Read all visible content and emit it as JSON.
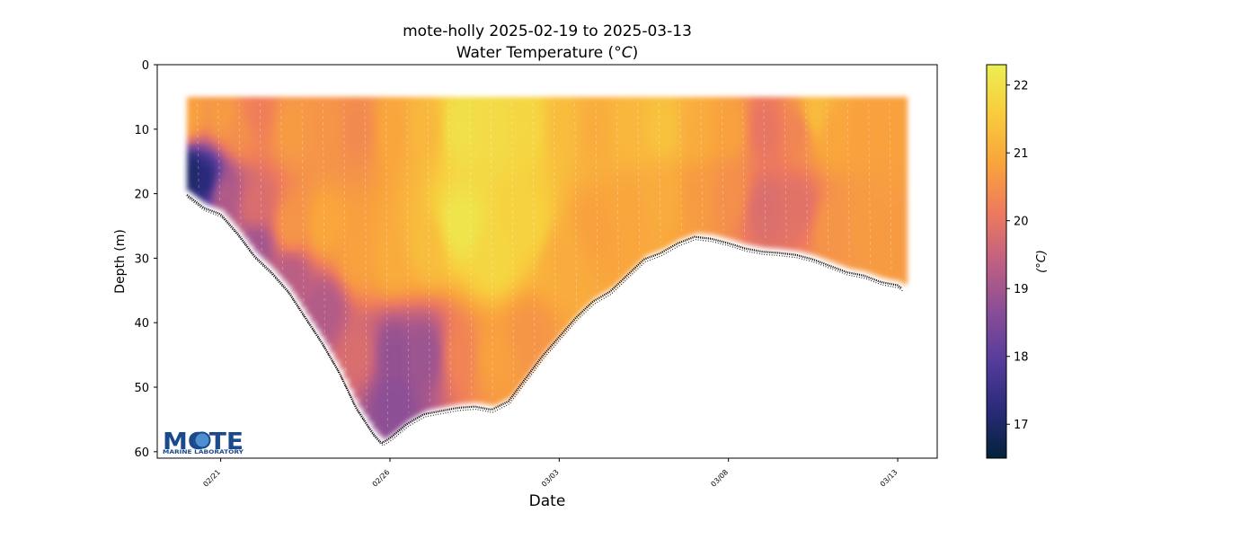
{
  "title": {
    "line1": "mote-holly 2025-02-19 to 2025-03-13",
    "line2_prefix": "Water Temperature (",
    "line2_unit": "°C",
    "line2_suffix": ")"
  },
  "logo": {
    "text": "MOTE",
    "subtext": "MARINE LABORATORY",
    "color": "#1a4a8c"
  },
  "chart_data": {
    "type": "scatter",
    "subtype": "depth-time section colored by temperature",
    "xlabel": "Date",
    "ylabel": "Depth (m)",
    "colorbar_label": "(°C)",
    "xticks": [
      {
        "label": "02/21",
        "date": "2025-02-21"
      },
      {
        "label": "02/26",
        "date": "2025-02-26"
      },
      {
        "label": "03/03",
        "date": "2025-03-03"
      },
      {
        "label": "03/08",
        "date": "2025-03-08"
      },
      {
        "label": "03/13",
        "date": "2025-03-13"
      }
    ],
    "xlim": [
      "2025-02-19T03:00",
      "2025-03-14T04:00"
    ],
    "yticks": [
      0,
      10,
      20,
      30,
      40,
      50,
      60
    ],
    "ylim": [
      61,
      0
    ],
    "y_inverted": true,
    "colorbar": {
      "range": [
        16.5,
        22.3
      ],
      "ticks": [
        17,
        18,
        19,
        20,
        21,
        22
      ],
      "colormap": "thermal",
      "stops": [
        "#04223a",
        "#2a2b7a",
        "#573c9c",
        "#8a4e96",
        "#c06082",
        "#ee7a5d",
        "#f9a43c",
        "#f8cc3c",
        "#ecee52"
      ]
    },
    "profile_top_depth_m": 5,
    "series": [
      {
        "name": "seafloor",
        "values_kind": "bottom depth (m) vs date",
        "points": [
          [
            "2025-02-20T00:00",
            19.5
          ],
          [
            "2025-02-20T06:00",
            20.5
          ],
          [
            "2025-02-20T12:00",
            21.5
          ],
          [
            "2025-02-21T00:00",
            22.5
          ],
          [
            "2025-02-21T12:00",
            25.5
          ],
          [
            "2025-02-22T00:00",
            29.0
          ],
          [
            "2025-02-22T12:00",
            31.5
          ],
          [
            "2025-02-23T00:00",
            34.5
          ],
          [
            "2025-02-23T12:00",
            38.5
          ],
          [
            "2025-02-24T00:00",
            42.5
          ],
          [
            "2025-02-24T12:00",
            47.0
          ],
          [
            "2025-02-25T00:00",
            52.5
          ],
          [
            "2025-02-25T12:00",
            56.5
          ],
          [
            "2025-02-25T18:00",
            58.0
          ],
          [
            "2025-02-26T00:00",
            57.2
          ],
          [
            "2025-02-26T12:00",
            55.0
          ],
          [
            "2025-02-27T00:00",
            53.5
          ],
          [
            "2025-02-27T12:00",
            53.0
          ],
          [
            "2025-02-28T00:00",
            52.5
          ],
          [
            "2025-02-28T12:00",
            52.3
          ],
          [
            "2025-03-01T00:00",
            52.8
          ],
          [
            "2025-03-01T12:00",
            51.5
          ],
          [
            "2025-03-02T00:00",
            48.0
          ],
          [
            "2025-03-02T12:00",
            44.5
          ],
          [
            "2025-03-03T00:00",
            41.5
          ],
          [
            "2025-03-03T12:00",
            38.5
          ],
          [
            "2025-03-04T00:00",
            36.0
          ],
          [
            "2025-03-04T12:00",
            34.5
          ],
          [
            "2025-03-05T00:00",
            32.0
          ],
          [
            "2025-03-05T12:00",
            29.5
          ],
          [
            "2025-03-06T00:00",
            28.5
          ],
          [
            "2025-03-06T12:00",
            27.0
          ],
          [
            "2025-03-07T00:00",
            26.0
          ],
          [
            "2025-03-07T12:00",
            26.3
          ],
          [
            "2025-03-08T00:00",
            27.0
          ],
          [
            "2025-03-08T12:00",
            27.8
          ],
          [
            "2025-03-09T00:00",
            28.3
          ],
          [
            "2025-03-09T12:00",
            28.5
          ],
          [
            "2025-03-10T00:00",
            28.8
          ],
          [
            "2025-03-10T12:00",
            29.5
          ],
          [
            "2025-03-11T00:00",
            30.5
          ],
          [
            "2025-03-11T12:00",
            31.5
          ],
          [
            "2025-03-12T00:00",
            32.0
          ],
          [
            "2025-03-12T12:00",
            33.0
          ],
          [
            "2025-03-13T00:00",
            33.5
          ],
          [
            "2025-03-13T03:00",
            34.0
          ]
        ]
      },
      {
        "name": "water temperature",
        "values_kind": "temperature (°C) at (date, depth)",
        "points": [
          [
            "2025-02-20T00:00",
            8,
            20.8
          ],
          [
            "2025-02-20T00:00",
            17,
            17.0
          ],
          [
            "2025-02-20T12:00",
            18,
            17.2
          ],
          [
            "2025-02-21T00:00",
            8,
            20.7
          ],
          [
            "2025-02-21T00:00",
            20,
            19.2
          ],
          [
            "2025-02-21T12:00",
            10,
            20.5
          ],
          [
            "2025-02-22T00:00",
            8,
            20.2
          ],
          [
            "2025-02-22T00:00",
            22,
            19.8
          ],
          [
            "2025-02-22T00:00",
            28,
            19.0
          ],
          [
            "2025-02-23T00:00",
            10,
            20.7
          ],
          [
            "2025-02-23T00:00",
            25,
            20.6
          ],
          [
            "2025-02-23T00:00",
            33,
            19.3
          ],
          [
            "2025-02-24T00:00",
            10,
            20.6
          ],
          [
            "2025-02-24T00:00",
            25,
            20.9
          ],
          [
            "2025-02-24T00:00",
            38,
            19.2
          ],
          [
            "2025-02-25T00:00",
            10,
            20.4
          ],
          [
            "2025-02-25T00:00",
            30,
            20.8
          ],
          [
            "2025-02-25T00:00",
            45,
            19.8
          ],
          [
            "2025-02-26T00:00",
            10,
            20.9
          ],
          [
            "2025-02-26T00:00",
            30,
            21.0
          ],
          [
            "2025-02-26T00:00",
            45,
            18.8
          ],
          [
            "2025-02-26T00:00",
            52,
            18.7
          ],
          [
            "2025-02-27T00:00",
            10,
            21.2
          ],
          [
            "2025-02-27T00:00",
            28,
            21.3
          ],
          [
            "2025-02-27T00:00",
            45,
            18.9
          ],
          [
            "2025-02-28T00:00",
            10,
            22.0
          ],
          [
            "2025-02-28T00:00",
            25,
            22.1
          ],
          [
            "2025-02-28T00:00",
            45,
            20.3
          ],
          [
            "2025-03-01T00:00",
            10,
            21.9
          ],
          [
            "2025-03-01T00:00",
            30,
            21.8
          ],
          [
            "2025-03-01T00:00",
            45,
            20.8
          ],
          [
            "2025-03-02T00:00",
            10,
            21.8
          ],
          [
            "2025-03-02T00:00",
            25,
            21.7
          ],
          [
            "2025-03-02T00:00",
            42,
            20.6
          ],
          [
            "2025-03-03T00:00",
            10,
            21.3
          ],
          [
            "2025-03-03T00:00",
            30,
            21.0
          ],
          [
            "2025-03-04T00:00",
            10,
            21.0
          ],
          [
            "2025-03-04T00:00",
            25,
            20.8
          ],
          [
            "2025-03-05T00:00",
            10,
            21.2
          ],
          [
            "2025-03-05T00:00",
            22,
            20.9
          ],
          [
            "2025-03-06T00:00",
            10,
            21.4
          ],
          [
            "2025-03-06T00:00",
            20,
            21.0
          ],
          [
            "2025-03-07T00:00",
            10,
            21.0
          ],
          [
            "2025-03-07T00:00",
            20,
            20.7
          ],
          [
            "2025-03-08T00:00",
            10,
            20.8
          ],
          [
            "2025-03-08T00:00",
            20,
            20.5
          ],
          [
            "2025-03-09T00:00",
            10,
            20.0
          ],
          [
            "2025-03-09T00:00",
            22,
            19.8
          ],
          [
            "2025-03-10T00:00",
            10,
            20.3
          ],
          [
            "2025-03-10T00:00",
            22,
            19.9
          ],
          [
            "2025-03-10T12:00",
            8,
            21.3
          ],
          [
            "2025-03-11T00:00",
            10,
            20.9
          ],
          [
            "2025-03-11T00:00",
            25,
            20.6
          ],
          [
            "2025-03-12T00:00",
            10,
            20.8
          ],
          [
            "2025-03-12T00:00",
            25,
            20.7
          ],
          [
            "2025-03-13T00:00",
            10,
            20.8
          ],
          [
            "2025-03-13T00:00",
            28,
            20.7
          ]
        ]
      }
    ]
  }
}
